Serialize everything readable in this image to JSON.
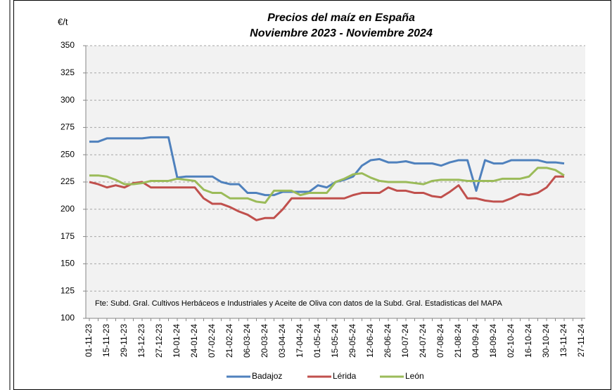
{
  "chart_data": {
    "type": "line",
    "title": "Precios del maíz en España",
    "subtitle": "Noviembre 2023 - Noviembre 2024",
    "y_label": "€/t",
    "annotation": "Fte: Subd. Gral. Cultivos Herbáceos e Industriales y Aceite de Oliva con datos de la Subd. Gral. Estadisticas del MAPA",
    "categories": [
      "01-11-23",
      null,
      "15-11-23",
      null,
      "29-11-23",
      null,
      "13-12-23",
      null,
      "27-12-23",
      null,
      "10-01-24",
      null,
      "24-01-24",
      null,
      "07-02-24",
      null,
      "21-02-24",
      null,
      "06-03-24",
      null,
      "20-03-24",
      null,
      "03-04-24",
      null,
      "17-04-24",
      null,
      "01-05-24",
      null,
      "15-05-24",
      null,
      "29-05-24",
      null,
      "12-06-24",
      null,
      "26-06-24",
      null,
      "10-07-24",
      null,
      "24-07-24",
      null,
      "07-08-24",
      null,
      "21-08-24",
      null,
      "04-09-24",
      null,
      "18-09-24",
      null,
      "02-10-24",
      null,
      "16-10-24",
      null,
      "30-10-24",
      null,
      "13-11-24",
      null,
      "27-11-24"
    ],
    "series": [
      {
        "name": "Badajoz",
        "color": "#4f81bd",
        "values": [
          262,
          262,
          265,
          265,
          265,
          265,
          265,
          266,
          266,
          266,
          229,
          230,
          230,
          230,
          230,
          225,
          223,
          223,
          215,
          215,
          213,
          213,
          216,
          216,
          216,
          216,
          222,
          220,
          225,
          227,
          230,
          240,
          245,
          246,
          243,
          243,
          244,
          242,
          242,
          242,
          240,
          243,
          245,
          245,
          217,
          245,
          242,
          242,
          245,
          245,
          245,
          245,
          243,
          243,
          242,
          null,
          null
        ]
      },
      {
        "name": "Lérida",
        "color": "#c0504d",
        "values": [
          225,
          223,
          220,
          222,
          220,
          224,
          225,
          220,
          220,
          220,
          220,
          220,
          220,
          210,
          205,
          205,
          202,
          198,
          195,
          190,
          192,
          192,
          200,
          210,
          210,
          210,
          210,
          210,
          210,
          210,
          213,
          215,
          215,
          215,
          220,
          217,
          217,
          215,
          215,
          212,
          211,
          216,
          222,
          210,
          210,
          208,
          207,
          207,
          210,
          214,
          213,
          215,
          220,
          230,
          230,
          null,
          null
        ]
      },
      {
        "name": "León",
        "color": "#9bbb59",
        "values": [
          231,
          231,
          230,
          227,
          223,
          223,
          224,
          226,
          226,
          226,
          228,
          227,
          226,
          218,
          215,
          215,
          210,
          210,
          210,
          207,
          206,
          217,
          217,
          217,
          213,
          215,
          215,
          215,
          225,
          228,
          232,
          233,
          229,
          226,
          225,
          225,
          225,
          224,
          223,
          226,
          227,
          227,
          227,
          226,
          226,
          226,
          226,
          228,
          228,
          228,
          230,
          238,
          238,
          236,
          231,
          null,
          null
        ]
      }
    ],
    "ylim": [
      100,
      350
    ],
    "yticks": [
      100,
      125,
      150,
      175,
      200,
      225,
      250,
      275,
      300,
      325,
      350
    ],
    "grid": true,
    "legend": "bottom"
  }
}
